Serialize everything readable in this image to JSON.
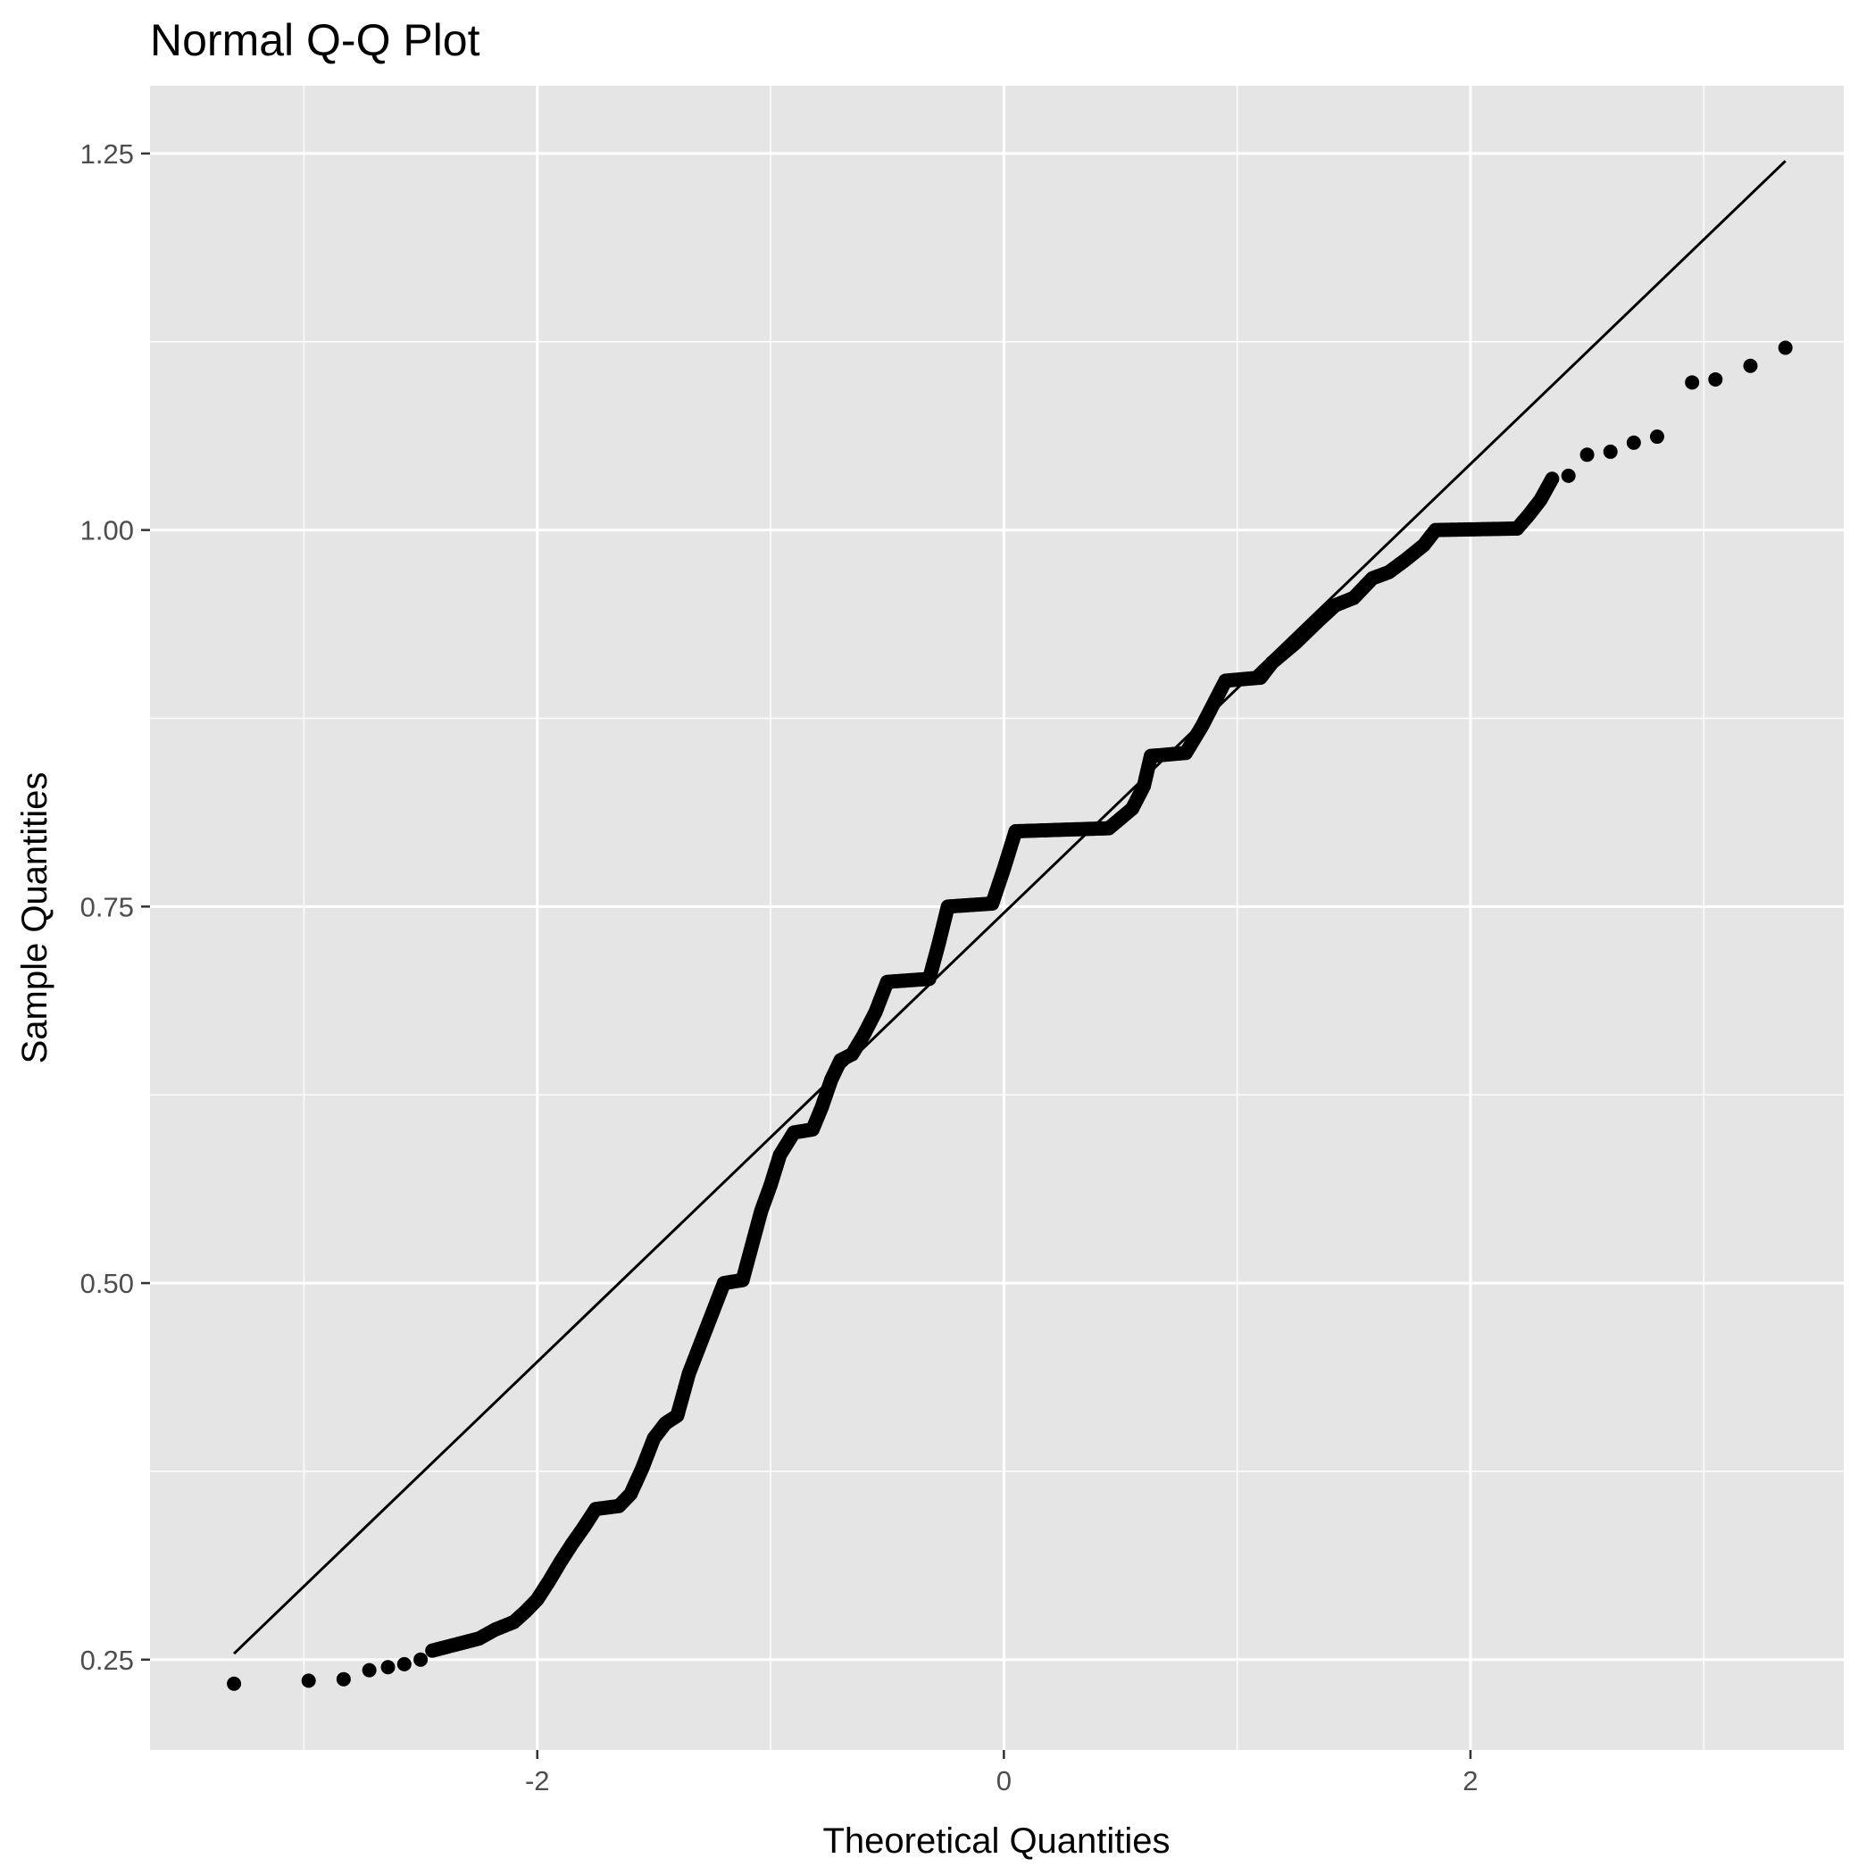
{
  "chart_data": {
    "type": "scatter",
    "title": "Normal Q-Q Plot",
    "xlabel": "Theoretical Quantities",
    "ylabel": "Sample Quantities",
    "xlim": [
      -3.66,
      3.6
    ],
    "ylim": [
      0.19,
      1.295
    ],
    "x_ticks": [
      -2,
      0,
      2
    ],
    "x_tick_labels": [
      "-2",
      "0",
      "2"
    ],
    "x_minor_ticks": [
      -3,
      -1,
      1,
      3
    ],
    "y_ticks": [
      0.25,
      0.5,
      0.75,
      1.0,
      1.25
    ],
    "y_tick_labels": [
      "0.25",
      "0.50",
      "0.75",
      "1.00",
      "1.25"
    ],
    "y_minor_ticks": [
      0.375,
      0.625,
      0.875,
      1.125
    ],
    "grid": true,
    "panel_background": "#E5E5E5",
    "grid_color": "#FFFFFF",
    "point_color": "#000000",
    "reference_line": {
      "x": [
        -3.3,
        3.35
      ],
      "y": [
        0.254,
        1.245
      ],
      "color": "#000000"
    },
    "series": [
      {
        "values_outliers_low": [
          [
            -3.3,
            0.234
          ],
          [
            -2.98,
            0.236
          ],
          [
            -2.83,
            0.237
          ],
          [
            -2.72,
            0.243
          ],
          [
            -2.64,
            0.245
          ],
          [
            -2.57,
            0.247
          ],
          [
            -2.5,
            0.25
          ]
        ],
        "values_curve": [
          [
            -2.45,
            0.256
          ],
          [
            -2.35,
            0.26
          ],
          [
            -2.25,
            0.264
          ],
          [
            -2.18,
            0.27
          ],
          [
            -2.1,
            0.275
          ],
          [
            -2.05,
            0.282
          ],
          [
            -2.0,
            0.29
          ],
          [
            -1.95,
            0.302
          ],
          [
            -1.9,
            0.315
          ],
          [
            -1.85,
            0.327
          ],
          [
            -1.8,
            0.338
          ],
          [
            -1.75,
            0.35
          ],
          [
            -1.65,
            0.352
          ],
          [
            -1.6,
            0.36
          ],
          [
            -1.55,
            0.377
          ],
          [
            -1.5,
            0.397
          ],
          [
            -1.45,
            0.407
          ],
          [
            -1.4,
            0.412
          ],
          [
            -1.35,
            0.44
          ],
          [
            -1.3,
            0.46
          ],
          [
            -1.25,
            0.48
          ],
          [
            -1.2,
            0.5
          ],
          [
            -1.12,
            0.502
          ],
          [
            -1.08,
            0.525
          ],
          [
            -1.04,
            0.548
          ],
          [
            -1.0,
            0.565
          ],
          [
            -0.96,
            0.585
          ],
          [
            -0.9,
            0.6
          ],
          [
            -0.82,
            0.602
          ],
          [
            -0.78,
            0.617
          ],
          [
            -0.74,
            0.635
          ],
          [
            -0.7,
            0.648
          ],
          [
            -0.65,
            0.652
          ],
          [
            -0.6,
            0.665
          ],
          [
            -0.55,
            0.68
          ],
          [
            -0.5,
            0.7
          ],
          [
            -0.32,
            0.702
          ],
          [
            -0.28,
            0.725
          ],
          [
            -0.24,
            0.75
          ],
          [
            -0.05,
            0.752
          ],
          [
            0.0,
            0.775
          ],
          [
            0.05,
            0.8
          ],
          [
            0.45,
            0.802
          ],
          [
            0.55,
            0.815
          ],
          [
            0.6,
            0.83
          ],
          [
            0.63,
            0.85
          ],
          [
            0.78,
            0.852
          ],
          [
            0.85,
            0.87
          ],
          [
            0.9,
            0.885
          ],
          [
            0.95,
            0.9
          ],
          [
            1.1,
            0.902
          ],
          [
            1.15,
            0.912
          ],
          [
            1.25,
            0.925
          ],
          [
            1.35,
            0.94
          ],
          [
            1.42,
            0.95
          ],
          [
            1.5,
            0.955
          ],
          [
            1.58,
            0.968
          ],
          [
            1.65,
            0.972
          ],
          [
            1.72,
            0.98
          ],
          [
            1.8,
            0.99
          ],
          [
            1.85,
            1.0
          ],
          [
            2.2,
            1.001
          ],
          [
            2.25,
            1.01
          ],
          [
            2.3,
            1.02
          ],
          [
            2.35,
            1.034
          ],
          [
            2.42,
            1.036
          ],
          [
            2.5,
            1.05
          ],
          [
            2.6,
            1.052
          ],
          [
            2.7,
            1.058
          ],
          [
            2.8,
            1.062
          ],
          [
            2.95,
            1.098
          ],
          [
            3.05,
            1.1
          ],
          [
            3.2,
            1.109
          ],
          [
            3.35,
            1.121
          ]
        ]
      }
    ]
  }
}
